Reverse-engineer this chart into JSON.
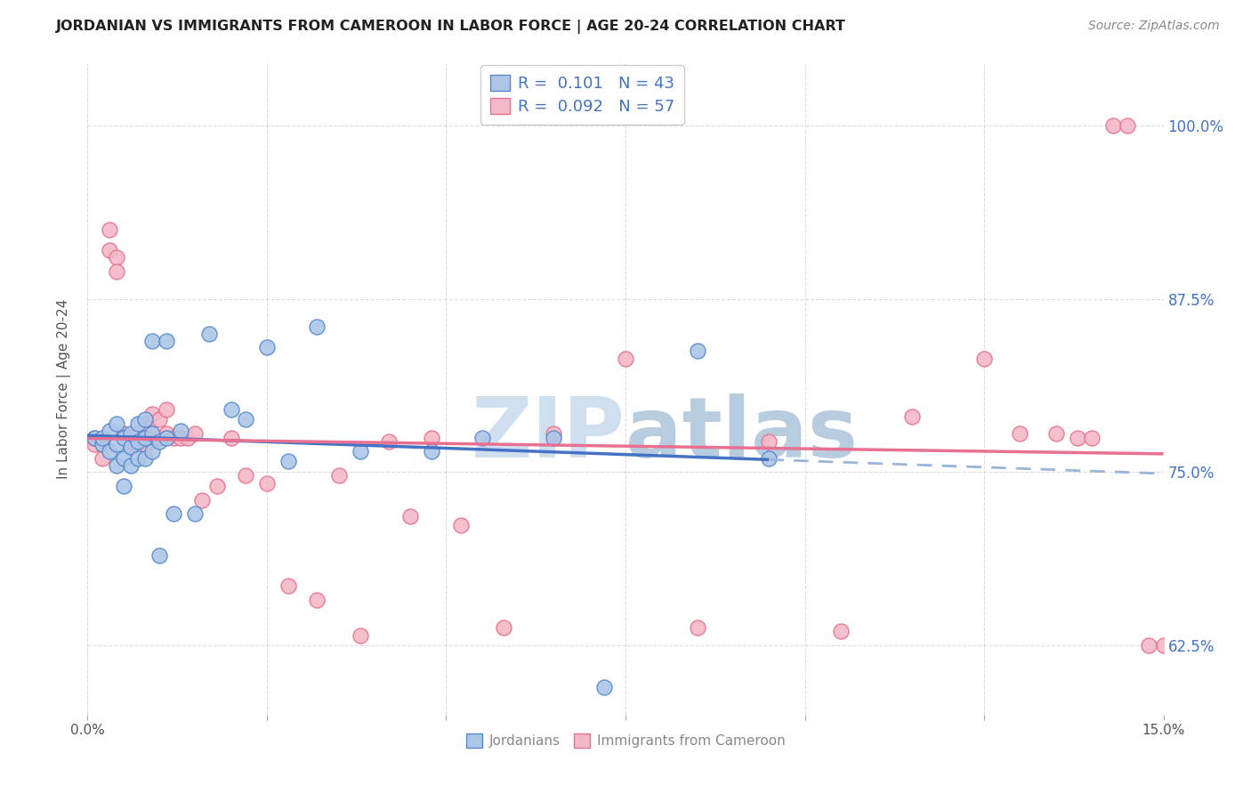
{
  "title": "JORDANIAN VS IMMIGRANTS FROM CAMEROON IN LABOR FORCE | AGE 20-24 CORRELATION CHART",
  "source": "Source: ZipAtlas.com",
  "ylabel": "In Labor Force | Age 20-24",
  "ytick_labels": [
    "62.5%",
    "75.0%",
    "87.5%",
    "100.0%"
  ],
  "ytick_values": [
    0.625,
    0.75,
    0.875,
    1.0
  ],
  "xlim": [
    0.0,
    0.15
  ],
  "ylim": [
    0.575,
    1.045
  ],
  "legend_blue_R": "0.101",
  "legend_blue_N": "43",
  "legend_pink_R": "0.092",
  "legend_pink_N": "57",
  "blue_scatter_color": "#adc6e8",
  "blue_edge_color": "#5588cc",
  "pink_scatter_color": "#f5b8c8",
  "pink_edge_color": "#e8708a",
  "blue_line_color": "#4472c4",
  "blue_dash_color": "#9ab5d8",
  "pink_line_color": "#e87090",
  "watermark_color": "#d0dff0",
  "grid_color": "#cccccc",
  "title_color": "#222222",
  "source_color": "#888888",
  "ylabel_color": "#555555",
  "ytick_color": "#4472c4",
  "xtick_color": "#555555",
  "blue_scatter_x": [
    0.001,
    0.002,
    0.002,
    0.003,
    0.003,
    0.004,
    0.004,
    0.004,
    0.005,
    0.005,
    0.005,
    0.006,
    0.006,
    0.006,
    0.007,
    0.007,
    0.007,
    0.008,
    0.008,
    0.008,
    0.009,
    0.009,
    0.009,
    0.01,
    0.01,
    0.011,
    0.011,
    0.012,
    0.013,
    0.015,
    0.017,
    0.02,
    0.022,
    0.025,
    0.028,
    0.032,
    0.038,
    0.048,
    0.055,
    0.065,
    0.072,
    0.085,
    0.095
  ],
  "blue_scatter_y": [
    0.775,
    0.77,
    0.775,
    0.765,
    0.78,
    0.755,
    0.77,
    0.785,
    0.74,
    0.76,
    0.775,
    0.755,
    0.768,
    0.778,
    0.76,
    0.772,
    0.785,
    0.76,
    0.775,
    0.788,
    0.765,
    0.778,
    0.845,
    0.69,
    0.772,
    0.775,
    0.845,
    0.72,
    0.78,
    0.72,
    0.85,
    0.795,
    0.788,
    0.84,
    0.758,
    0.855,
    0.765,
    0.765,
    0.775,
    0.775,
    0.595,
    0.838,
    0.76
  ],
  "pink_scatter_x": [
    0.001,
    0.001,
    0.002,
    0.003,
    0.003,
    0.004,
    0.004,
    0.005,
    0.005,
    0.006,
    0.006,
    0.006,
    0.007,
    0.007,
    0.008,
    0.008,
    0.008,
    0.009,
    0.009,
    0.009,
    0.01,
    0.01,
    0.011,
    0.011,
    0.012,
    0.013,
    0.014,
    0.015,
    0.016,
    0.018,
    0.02,
    0.022,
    0.025,
    0.028,
    0.032,
    0.035,
    0.038,
    0.042,
    0.045,
    0.048,
    0.052,
    0.058,
    0.065,
    0.075,
    0.085,
    0.095,
    0.105,
    0.115,
    0.125,
    0.13,
    0.135,
    0.138,
    0.14,
    0.143,
    0.145,
    0.148,
    0.15
  ],
  "pink_scatter_y": [
    0.77,
    0.775,
    0.76,
    0.925,
    0.91,
    0.905,
    0.895,
    0.778,
    0.775,
    0.775,
    0.768,
    0.772,
    0.772,
    0.778,
    0.775,
    0.782,
    0.77,
    0.792,
    0.778,
    0.772,
    0.788,
    0.775,
    0.795,
    0.778,
    0.775,
    0.775,
    0.775,
    0.778,
    0.73,
    0.74,
    0.775,
    0.748,
    0.742,
    0.668,
    0.658,
    0.748,
    0.632,
    0.772,
    0.718,
    0.775,
    0.712,
    0.638,
    0.778,
    0.832,
    0.638,
    0.772,
    0.635,
    0.79,
    0.832,
    0.778,
    0.778,
    0.775,
    0.775,
    1.0,
    1.0,
    0.625,
    0.625
  ],
  "blue_line_x_end": 0.095,
  "blue_line_intercept": 0.758,
  "blue_line_slope": 0.45,
  "pink_line_intercept": 0.762,
  "pink_line_slope": 0.25
}
